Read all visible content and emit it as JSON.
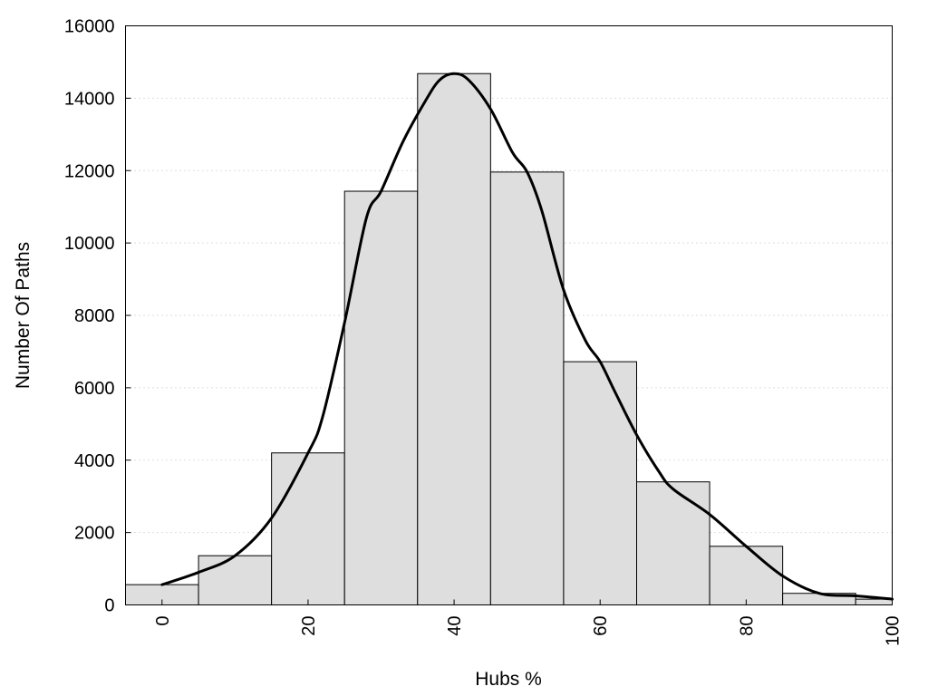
{
  "chart_data": {
    "type": "bar",
    "title": "",
    "xlabel": "Hubs %",
    "ylabel": "Number Of Paths",
    "xlim": [
      -5,
      100
    ],
    "ylim": [
      0,
      16000
    ],
    "x_ticks": [
      0,
      20,
      40,
      60,
      80,
      100
    ],
    "y_ticks": [
      0,
      2000,
      4000,
      6000,
      8000,
      10000,
      12000,
      14000,
      16000
    ],
    "grid": "horizontal dotted",
    "bin_width": 10,
    "bins": [
      {
        "center": 0,
        "value": 560
      },
      {
        "center": 10,
        "value": 1360
      },
      {
        "center": 20,
        "value": 4200
      },
      {
        "center": 30,
        "value": 11430
      },
      {
        "center": 40,
        "value": 14680
      },
      {
        "center": 50,
        "value": 11960
      },
      {
        "center": 60,
        "value": 6720
      },
      {
        "center": 70,
        "value": 3400
      },
      {
        "center": 80,
        "value": 1620
      },
      {
        "center": 90,
        "value": 320
      },
      {
        "center": 100,
        "value": 160
      }
    ],
    "curve": {
      "type": "line",
      "x": [
        0,
        5,
        10,
        15,
        20,
        22,
        25,
        28,
        30,
        33,
        36,
        38,
        40,
        42,
        45,
        48,
        50,
        52,
        55,
        58,
        60,
        62,
        65,
        68,
        70,
        75,
        80,
        85,
        90,
        95,
        100
      ],
      "y": [
        560,
        900,
        1360,
        2400,
        4200,
        5200,
        7800,
        10700,
        11430,
        12800,
        13900,
        14500,
        14680,
        14500,
        13700,
        12500,
        11960,
        10900,
        8700,
        7300,
        6720,
        5900,
        4700,
        3700,
        3200,
        2500,
        1620,
        800,
        320,
        250,
        160
      ],
      "color": "#000000"
    },
    "colors": {
      "bar_fill": "#dedede",
      "bar_edge": "#000000",
      "line": "#000000"
    }
  }
}
